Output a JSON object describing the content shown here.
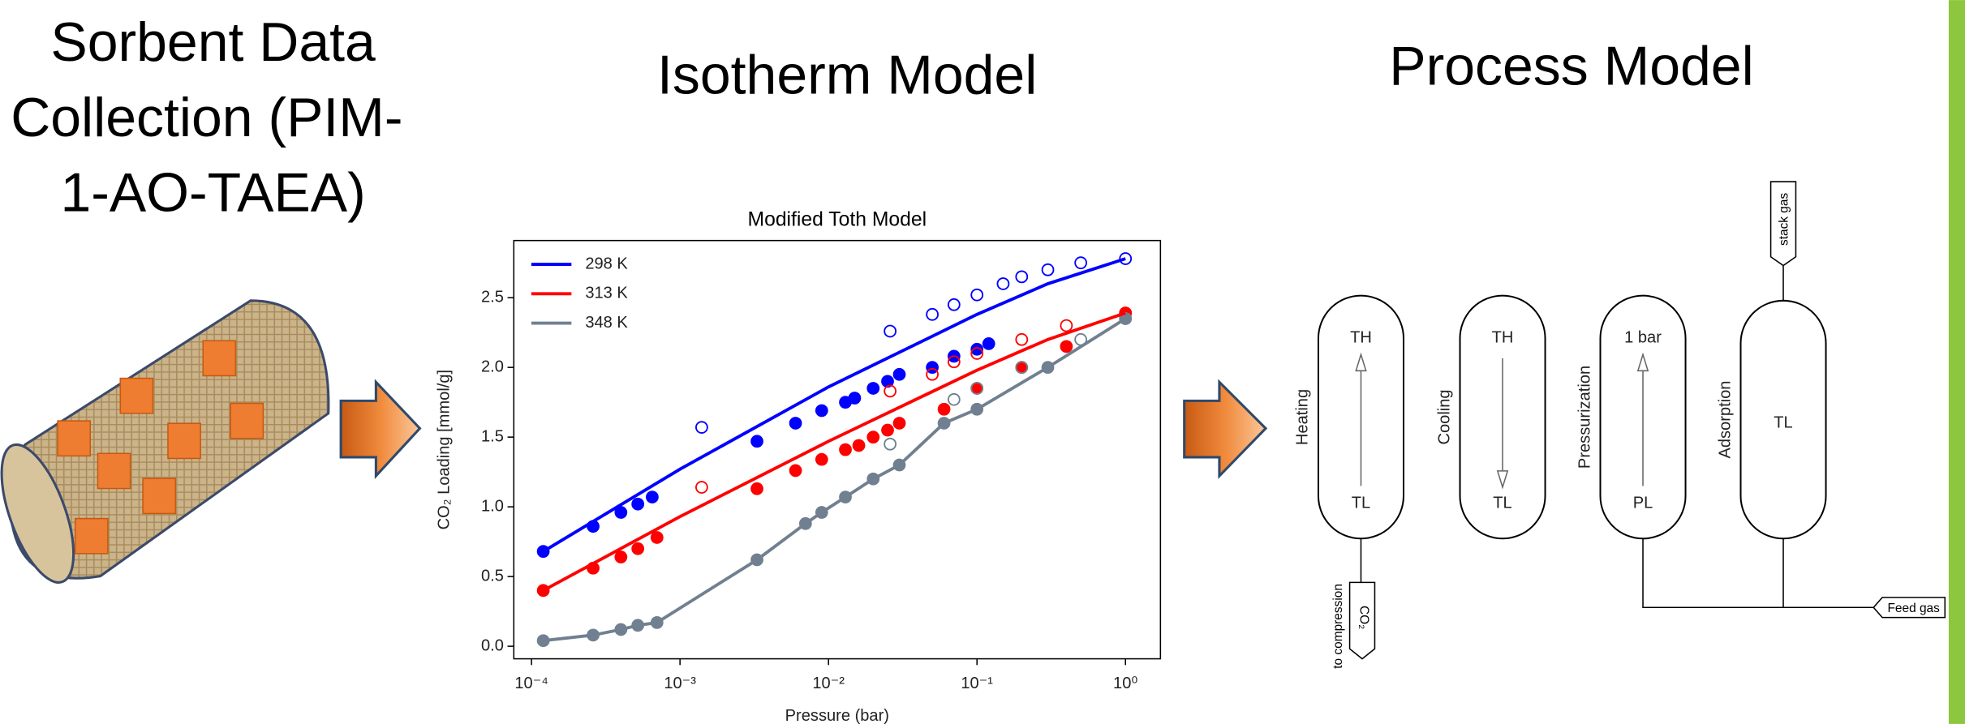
{
  "headings": {
    "sorbent": [
      "Sorbent Data",
      "Collection (PIM-",
      "1-AO-TAEA)"
    ],
    "isotherm": "Isotherm Model",
    "process": "Process Model"
  },
  "chart_data": {
    "type": "line",
    "title": "Modified Toth Model",
    "x_label": "Pressure (bar)",
    "y_label": "CO₂ Loading [mmol/g]",
    "log_x": true,
    "legend": "upper-left",
    "xlim": [
      7.6e-05,
      1.72
    ],
    "ylim": [
      -0.09,
      2.91
    ],
    "xticks": [
      {
        "value": 0.0001,
        "label": "10⁻⁴"
      },
      {
        "value": 0.001,
        "label": "10⁻³"
      },
      {
        "value": 0.01,
        "label": "10⁻²"
      },
      {
        "value": 0.1,
        "label": "10⁻¹"
      },
      {
        "value": 1,
        "label": "10⁰"
      }
    ],
    "yticks": [
      {
        "value": 0,
        "label": "0.0"
      },
      0.5,
      {
        "value": 1,
        "label": "1.0"
      },
      1.5,
      {
        "value": 2,
        "label": "2.0"
      },
      2.5
    ],
    "series": [
      {
        "name": "298 K",
        "color": "#0000ff",
        "x": [
          0.00012,
          0.001,
          0.01,
          0.1,
          0.3,
          1
        ],
        "values": [
          0.68,
          1.27,
          1.86,
          2.38,
          2.6,
          2.78
        ]
      },
      {
        "name": "313 K",
        "color": "#ff0000",
        "x": [
          0.00012,
          0.001,
          0.01,
          0.1,
          0.3,
          1
        ],
        "values": [
          0.4,
          0.93,
          1.47,
          1.98,
          2.2,
          2.39
        ]
      },
      {
        "name": "348 K",
        "color": "#708090",
        "x": [
          0.00012,
          0.00026,
          0.0004,
          0.00052,
          0.0007,
          0.0033,
          0.007,
          0.009,
          0.013,
          0.02,
          0.03,
          0.06,
          0.1,
          0.3,
          1
        ],
        "values": [
          0.04,
          0.08,
          0.12,
          0.15,
          0.17,
          0.62,
          0.88,
          0.96,
          1.07,
          1.2,
          1.3,
          1.6,
          1.7,
          2.0,
          2.35
        ]
      }
    ],
    "points": [
      {
        "color": "#0000ff",
        "filled": true,
        "x": [
          0.00012,
          0.00026,
          0.0004,
          0.00052,
          0.00065,
          0.0033,
          0.006,
          0.009,
          0.013,
          0.015,
          0.02,
          0.025,
          0.03,
          0.05,
          0.07,
          0.1,
          0.12
        ],
        "values": [
          0.68,
          0.86,
          0.96,
          1.02,
          1.07,
          1.47,
          1.6,
          1.69,
          1.75,
          1.78,
          1.85,
          1.9,
          1.95,
          2.0,
          2.08,
          2.13,
          2.17
        ]
      },
      {
        "color": "#0000ff",
        "filled": false,
        "x": [
          0.0014,
          0.026,
          0.05,
          0.07,
          0.1,
          0.15,
          0.2,
          0.3,
          0.5,
          1
        ],
        "values": [
          1.57,
          2.26,
          2.38,
          2.45,
          2.52,
          2.6,
          2.65,
          2.7,
          2.75,
          2.78
        ]
      },
      {
        "color": "#ff0000",
        "filled": true,
        "x": [
          0.00012,
          0.00026,
          0.0004,
          0.00052,
          0.0007,
          0.0033,
          0.006,
          0.009,
          0.013,
          0.016,
          0.02,
          0.025,
          0.03,
          0.06,
          0.1,
          0.2,
          0.4,
          1
        ],
        "values": [
          0.4,
          0.56,
          0.64,
          0.7,
          0.78,
          1.13,
          1.26,
          1.34,
          1.41,
          1.44,
          1.5,
          1.55,
          1.6,
          1.7,
          1.85,
          2.0,
          2.15,
          2.39
        ]
      },
      {
        "color": "#ff0000",
        "filled": false,
        "x": [
          0.0014,
          0.026,
          0.05,
          0.07,
          0.1,
          0.2,
          0.4,
          1
        ],
        "values": [
          1.14,
          1.83,
          1.95,
          2.04,
          2.1,
          2.2,
          2.3,
          2.39
        ]
      },
      {
        "color": "#708090",
        "filled": true,
        "x": [
          0.00012,
          0.00026,
          0.0004,
          0.00052,
          0.0007,
          0.0033,
          0.007,
          0.009,
          0.013,
          0.02,
          0.03,
          0.06,
          0.1,
          0.3,
          1
        ],
        "values": [
          0.04,
          0.08,
          0.12,
          0.15,
          0.17,
          0.62,
          0.88,
          0.96,
          1.07,
          1.2,
          1.3,
          1.6,
          1.7,
          2.0,
          2.35
        ]
      },
      {
        "color": "#708090",
        "filled": false,
        "x": [
          0.026,
          0.07,
          0.1,
          0.2,
          0.5,
          1
        ],
        "values": [
          1.45,
          1.77,
          1.85,
          2.0,
          2.2,
          2.35
        ]
      }
    ]
  },
  "process": {
    "vessels": [
      {
        "step": "Heating",
        "top": "TH",
        "bottom": "TL"
      },
      {
        "step": "Cooling",
        "top": "TH",
        "bottom": "TL"
      },
      {
        "step": "Pressurization",
        "top": "1 bar",
        "bottom": "PL"
      },
      {
        "step": "Adsorption",
        "middle": "TL"
      }
    ],
    "stack": "stack gas",
    "compression": "to compression",
    "product": "CO₂",
    "feed": "Feed gas"
  }
}
